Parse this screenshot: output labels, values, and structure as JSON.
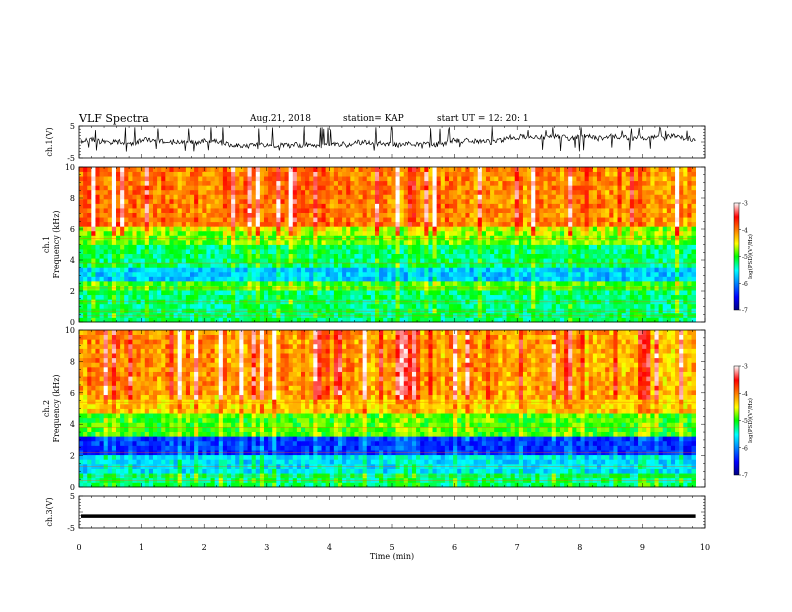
{
  "header": {
    "title": "VLF Spectra",
    "date": "Aug.21, 2018",
    "station": "station= KAP",
    "start_time": "start  UT =   12: 20: 1"
  },
  "chart_data": [
    {
      "type": "line",
      "id": "ch1",
      "ylabel": "ch.1(V)",
      "ylim": [
        -5,
        5
      ],
      "y_ticks": [
        "5",
        "-5"
      ],
      "xlim": [
        0,
        10
      ],
      "description_of_values": "noisy waveform mostly between -2 and 3 V"
    },
    {
      "type": "heatmap",
      "id": "ch1-spectrogram",
      "ylabel_top": "ch.1",
      "ylabel": "Frequency (kHz)",
      "ylim": [
        0,
        10
      ],
      "y_ticks": [
        "0",
        "2",
        "4",
        "6",
        "8",
        "10"
      ],
      "xlim": [
        0,
        10
      ],
      "data_extent_min": 9.85,
      "colorbar": {
        "label": "log(PSD)(V²/Hz)",
        "range": [
          -7,
          -3
        ],
        "ticks": [
          "-3",
          "-4",
          "-5",
          "-6",
          "-7"
        ]
      },
      "bands": [
        {
          "from": 0,
          "to": 2,
          "level": -5.3
        },
        {
          "from": 2,
          "to": 2.6,
          "level": -5.0
        },
        {
          "from": 2.6,
          "to": 3.6,
          "level": -5.8
        },
        {
          "from": 3.6,
          "to": 5.0,
          "level": -5.3
        },
        {
          "from": 5.0,
          "to": 6.2,
          "level": -4.9
        },
        {
          "from": 6.2,
          "to": 10,
          "level": -4.3
        }
      ]
    },
    {
      "type": "heatmap",
      "id": "ch2-spectrogram",
      "ylabel_top": "ch.2",
      "ylabel": "Frequency (kHz)",
      "ylim": [
        0,
        10
      ],
      "y_ticks": [
        "0",
        "2",
        "4",
        "6",
        "8",
        "10"
      ],
      "xlim": [
        0,
        10
      ],
      "data_extent_min": 9.85,
      "colorbar": {
        "label": "log(PSD)(V²/Hz)",
        "range": [
          -7,
          -3
        ],
        "ticks": [
          "-3",
          "-4",
          "-5",
          "-6",
          "-7"
        ]
      },
      "bands": [
        {
          "from": 0,
          "to": 0.8,
          "level": -5.3
        },
        {
          "from": 0.8,
          "to": 2.0,
          "level": -5.7
        },
        {
          "from": 2.0,
          "to": 3.2,
          "level": -6.4
        },
        {
          "from": 3.2,
          "to": 4.8,
          "level": -5.0
        },
        {
          "from": 4.8,
          "to": 10,
          "level": -4.4
        }
      ]
    },
    {
      "type": "line",
      "id": "ch3",
      "ylabel": "ch.3(V)",
      "ylim": [
        -5,
        5
      ],
      "y_ticks": [
        "5",
        "-5"
      ],
      "xlim": [
        0,
        10
      ],
      "constant_value": -1.3,
      "xlabel": "Time (min)",
      "x_ticks": [
        "0",
        "1",
        "2",
        "3",
        "4",
        "5",
        "6",
        "7",
        "8",
        "9",
        "10"
      ]
    }
  ]
}
